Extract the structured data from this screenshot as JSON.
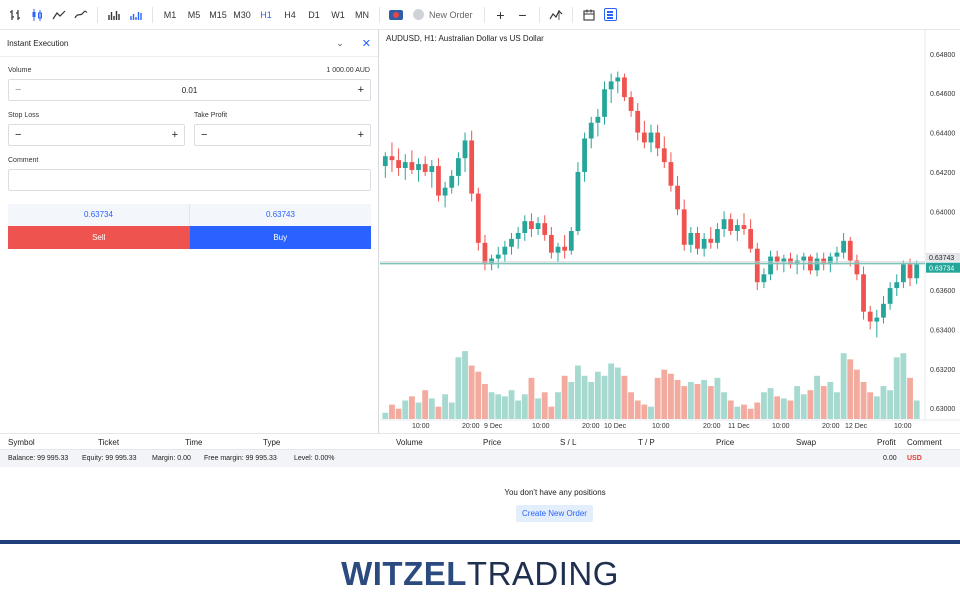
{
  "toolbar": {
    "timeframes": [
      "M1",
      "M5",
      "M15",
      "M30",
      "H1",
      "H4",
      "D1",
      "W1",
      "MN"
    ],
    "active_timeframe": "H1",
    "new_order_label": "New Order"
  },
  "order_panel": {
    "title": "Instant Execution",
    "volume_label": "Volume",
    "volume_amount": "1 000.00 AUD",
    "volume_value": "0.01",
    "stop_loss_label": "Stop Loss",
    "take_profit_label": "Take Profit",
    "comment_label": "Comment",
    "bid_price": "0.63734",
    "ask_price": "0.63743",
    "sell_label": "Sell",
    "buy_label": "Buy"
  },
  "chart": {
    "title": "AUDUSD, H1: Australian Dollar vs US Dollar",
    "price_ticks": [
      "0.64800",
      "0.64600",
      "0.64400",
      "0.64200",
      "0.64000",
      "0.63600",
      "0.63400",
      "0.63200",
      "0.63000"
    ],
    "ask_tag": "0.63743",
    "bid_tag": "0.63734",
    "time_labels": [
      "10:00",
      "20:00",
      "9 Dec",
      "10:00",
      "20:00",
      "10 Dec",
      "10:00",
      "20:00",
      "11 Dec",
      "10:00",
      "20:00",
      "12 Dec",
      "10:00"
    ],
    "colors": {
      "up": "#26a69a",
      "down": "#ef5350",
      "up_volume": "#a6d9cf",
      "down_volume": "#f4ab9f",
      "bid_line": "#7fc4b8"
    }
  },
  "chart_data": {
    "type": "candlestick",
    "title": "AUDUSD, H1: Australian Dollar vs US Dollar",
    "ylim": [
      0.6295,
      0.6485
    ],
    "candles": [
      [
        0.6423,
        0.643,
        0.6417,
        0.6428
      ],
      [
        0.6428,
        0.6435,
        0.642,
        0.6426
      ],
      [
        0.6426,
        0.6432,
        0.6418,
        0.6422
      ],
      [
        0.6422,
        0.6429,
        0.6416,
        0.6425
      ],
      [
        0.6425,
        0.6431,
        0.6419,
        0.6421
      ],
      [
        0.6421,
        0.6427,
        0.6415,
        0.6424
      ],
      [
        0.6424,
        0.6428,
        0.6418,
        0.642
      ],
      [
        0.642,
        0.6426,
        0.6412,
        0.6423
      ],
      [
        0.6423,
        0.6427,
        0.6405,
        0.6408
      ],
      [
        0.6408,
        0.6415,
        0.6402,
        0.6412
      ],
      [
        0.6412,
        0.6421,
        0.6409,
        0.6418
      ],
      [
        0.6418,
        0.643,
        0.6413,
        0.6427
      ],
      [
        0.6427,
        0.644,
        0.642,
        0.6436
      ],
      [
        0.6436,
        0.6441,
        0.6405,
        0.6409
      ],
      [
        0.6409,
        0.6412,
        0.638,
        0.6384
      ],
      [
        0.6384,
        0.6388,
        0.637,
        0.6373
      ],
      [
        0.6373,
        0.6378,
        0.637,
        0.6376
      ],
      [
        0.6376,
        0.6382,
        0.6371,
        0.6378
      ],
      [
        0.6378,
        0.6385,
        0.6374,
        0.6382
      ],
      [
        0.6382,
        0.6389,
        0.6378,
        0.6386
      ],
      [
        0.6386,
        0.6392,
        0.6381,
        0.6389
      ],
      [
        0.6389,
        0.6398,
        0.6385,
        0.6395
      ],
      [
        0.6395,
        0.6399,
        0.6387,
        0.6391
      ],
      [
        0.6391,
        0.6397,
        0.6388,
        0.6394
      ],
      [
        0.6394,
        0.6398,
        0.6385,
        0.6388
      ],
      [
        0.6388,
        0.6392,
        0.6376,
        0.6379
      ],
      [
        0.6379,
        0.6384,
        0.6374,
        0.6382
      ],
      [
        0.6382,
        0.6388,
        0.6376,
        0.638
      ],
      [
        0.638,
        0.6392,
        0.6378,
        0.639
      ],
      [
        0.639,
        0.6425,
        0.6388,
        0.642
      ],
      [
        0.642,
        0.644,
        0.6415,
        0.6437
      ],
      [
        0.6437,
        0.6448,
        0.6432,
        0.6445
      ],
      [
        0.6445,
        0.6452,
        0.6438,
        0.6448
      ],
      [
        0.6448,
        0.6466,
        0.6444,
        0.6462
      ],
      [
        0.6462,
        0.647,
        0.6455,
        0.6466
      ],
      [
        0.6466,
        0.6471,
        0.646,
        0.6468
      ],
      [
        0.6468,
        0.647,
        0.6456,
        0.6458
      ],
      [
        0.6458,
        0.6461,
        0.6448,
        0.6451
      ],
      [
        0.6451,
        0.6455,
        0.6436,
        0.644
      ],
      [
        0.644,
        0.6446,
        0.6432,
        0.6435
      ],
      [
        0.6435,
        0.6444,
        0.643,
        0.644
      ],
      [
        0.644,
        0.6444,
        0.6428,
        0.6432
      ],
      [
        0.6432,
        0.6438,
        0.6422,
        0.6425
      ],
      [
        0.6425,
        0.643,
        0.641,
        0.6413
      ],
      [
        0.6413,
        0.6418,
        0.6398,
        0.6401
      ],
      [
        0.6401,
        0.6406,
        0.638,
        0.6383
      ],
      [
        0.6383,
        0.6392,
        0.6379,
        0.6389
      ],
      [
        0.6389,
        0.6392,
        0.6378,
        0.6381
      ],
      [
        0.6381,
        0.6389,
        0.6377,
        0.6386
      ],
      [
        0.6386,
        0.6392,
        0.6381,
        0.6384
      ],
      [
        0.6384,
        0.6394,
        0.6381,
        0.6391
      ],
      [
        0.6391,
        0.64,
        0.6387,
        0.6396
      ],
      [
        0.6396,
        0.6399,
        0.6388,
        0.639
      ],
      [
        0.639,
        0.6396,
        0.6385,
        0.6393
      ],
      [
        0.6393,
        0.6399,
        0.6388,
        0.6391
      ],
      [
        0.6391,
        0.6396,
        0.6379,
        0.6381
      ],
      [
        0.6381,
        0.6384,
        0.636,
        0.6364
      ],
      [
        0.6364,
        0.6371,
        0.6361,
        0.6368
      ],
      [
        0.6368,
        0.638,
        0.6365,
        0.6377
      ],
      [
        0.6377,
        0.638,
        0.637,
        0.6374
      ],
      [
        0.6374,
        0.6378,
        0.6369,
        0.6376
      ],
      [
        0.6376,
        0.6379,
        0.6371,
        0.6373
      ],
      [
        0.6373,
        0.6378,
        0.6368,
        0.6375
      ],
      [
        0.6375,
        0.6379,
        0.637,
        0.6377
      ],
      [
        0.6377,
        0.6378,
        0.6368,
        0.637
      ],
      [
        0.637,
        0.6379,
        0.6367,
        0.6376
      ],
      [
        0.6376,
        0.6379,
        0.637,
        0.6373
      ],
      [
        0.6373,
        0.6379,
        0.6369,
        0.6377
      ],
      [
        0.6377,
        0.6382,
        0.6373,
        0.6379
      ],
      [
        0.6379,
        0.6389,
        0.6376,
        0.6385
      ],
      [
        0.6385,
        0.6387,
        0.6372,
        0.6375
      ],
      [
        0.6375,
        0.6378,
        0.6365,
        0.6368
      ],
      [
        0.6368,
        0.6372,
        0.6345,
        0.6349
      ],
      [
        0.6349,
        0.6352,
        0.634,
        0.6344
      ],
      [
        0.6344,
        0.635,
        0.6336,
        0.6346
      ],
      [
        0.6346,
        0.6357,
        0.6343,
        0.6353
      ],
      [
        0.6353,
        0.6364,
        0.635,
        0.6361
      ],
      [
        0.6361,
        0.6368,
        0.6357,
        0.6364
      ],
      [
        0.6364,
        0.6375,
        0.6361,
        0.6373
      ],
      [
        0.6373,
        0.6376,
        0.6362,
        0.6366
      ],
      [
        0.6366,
        0.6375,
        0.6363,
        0.6373
      ]
    ],
    "volumes": [
      3,
      7,
      5,
      9,
      11,
      8,
      14,
      10,
      6,
      12,
      8,
      30,
      33,
      26,
      23,
      17,
      13,
      12,
      11,
      14,
      9,
      12,
      20,
      10,
      13,
      6,
      13,
      21,
      18,
      26,
      21,
      18,
      23,
      21,
      27,
      25,
      21,
      13,
      9,
      7,
      6,
      20,
      24,
      22,
      19,
      16,
      18,
      17,
      19,
      16,
      20,
      13,
      9,
      6,
      7,
      5,
      8,
      13,
      15,
      11,
      10,
      9,
      16,
      12,
      14,
      21,
      16,
      18,
      13,
      32,
      29,
      24,
      18,
      13,
      11,
      16,
      14,
      30,
      32,
      20,
      9
    ],
    "volume_ylim": [
      0,
      35
    ]
  },
  "positions": {
    "columns": [
      "Symbol",
      "Ticket",
      "Time",
      "Type",
      "Volume",
      "Price",
      "S / L",
      "T / P",
      "Price",
      "Swap",
      "Profit",
      "Comment"
    ],
    "balance": "Balance: 99 995.33",
    "equity": "Equity: 99 995.33",
    "margin": "Margin: 0.00",
    "free_margin": "Free margin: 99 995.33",
    "level": "Level: 0.00%",
    "profit": "0.00",
    "currency": "USD",
    "empty_message": "You don't have any positions",
    "create_order_label": "Create New Order"
  },
  "footer": {
    "brand_bold": "WITZEL",
    "brand_light": "TRADING"
  }
}
